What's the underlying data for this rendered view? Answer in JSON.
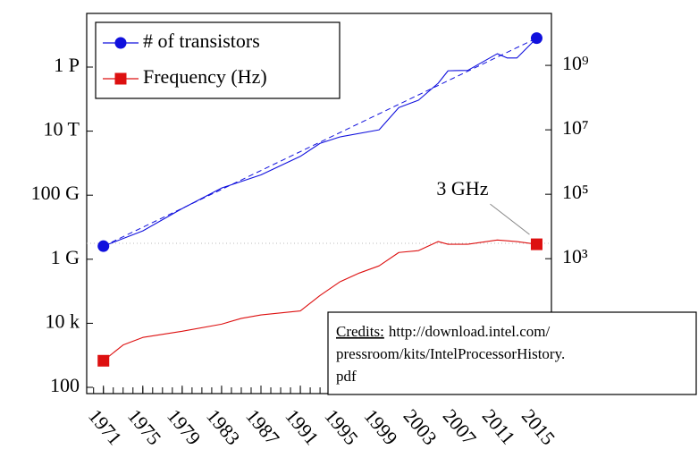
{
  "chart_data": {
    "type": "line",
    "xlim": [
      1969.3,
      2016.5
    ],
    "xticks": [
      1971,
      1975,
      1979,
      1983,
      1987,
      1991,
      1995,
      1999,
      2003,
      2007,
      2011,
      2015
    ],
    "xminorticks": [
      1970,
      1971,
      1972,
      1973,
      1974,
      1975,
      1976,
      1977,
      1978,
      1979,
      1980,
      1981,
      1982,
      1983,
      1984,
      1985,
      1986,
      1987,
      1988,
      1989,
      1990,
      1991,
      1992,
      1993,
      1994,
      1995,
      1996,
      1997,
      1998,
      1999,
      2000,
      2001,
      2002,
      2003,
      2004,
      2005,
      2006,
      2007,
      2008,
      2009,
      2010,
      2011,
      2012,
      2013,
      2014,
      2015,
      2016
    ],
    "ylim": [
      64,
      4.6e+16
    ],
    "yticks": [
      {
        "value": 100,
        "label": "100"
      },
      {
        "value": 10000,
        "label": "10 k"
      },
      {
        "value": 1000000000,
        "label": "1 G"
      },
      {
        "value": 100000000000,
        "label": "100 G"
      },
      {
        "value": 10000000000000,
        "label": "10 T"
      },
      {
        "value": 1000000000000000,
        "label": "1 P"
      }
    ],
    "y2lim": [
      0.065,
      41000000000
    ],
    "y2ticks": [
      {
        "value": 1000,
        "label": "10³"
      },
      {
        "value": 100000,
        "label": "10⁵"
      },
      {
        "value": 10000000,
        "label": "10⁷"
      },
      {
        "value": 1000000000,
        "label": "10⁹"
      }
    ],
    "log_scale": true,
    "legend": "top-left",
    "series": [
      {
        "name": "# of transistors",
        "color": "#1010dd",
        "marker": "circle",
        "axis": "y2",
        "x": [
          1971,
          1975,
          1979,
          1983,
          1987,
          1991,
          1993,
          1995,
          1999,
          2001,
          2003,
          2005,
          2006,
          2008,
          2011,
          2012,
          2013,
          2015
        ],
        "values": [
          2450,
          7300,
          36000,
          156000,
          400000,
          1500000,
          3800000,
          6000000,
          10000000,
          49000000,
          83000000,
          280000000,
          680000000,
          700000000,
          2300000000,
          1700000000,
          1700000000,
          7000000000
        ]
      },
      {
        "name": "Frequency (Hz)",
        "color": "#dd1010",
        "marker": "square",
        "axis": "y2",
        "x": [
          1971,
          1973,
          1975,
          1979,
          1983,
          1985,
          1987,
          1991,
          1993,
          1995,
          1997,
          1999,
          2001,
          2003,
          2005,
          2006,
          2008,
          2011,
          2013,
          2015
        ],
        "values": [
          0.68,
          2.1,
          3.6,
          5.6,
          9.3,
          14,
          18,
          24,
          72,
          190,
          360,
          600,
          1560,
          1780,
          3400,
          2800,
          2800,
          3800,
          3400,
          2800
        ]
      }
    ],
    "trend_line": {
      "color": "#1010dd",
      "x": [
        1971,
        2015
      ],
      "values": [
        2450,
        7000000000
      ]
    },
    "reference_line": {
      "value": 3000,
      "color": "#bbbbbb"
    },
    "annotation": {
      "text": "3 GHz",
      "x": 2015,
      "value": 2800
    },
    "credits": {
      "label": "Credits:",
      "lines": [
        "http://download.intel.com/",
        "pressroom/kits/IntelProcessorHistory.",
        "pdf"
      ]
    }
  }
}
